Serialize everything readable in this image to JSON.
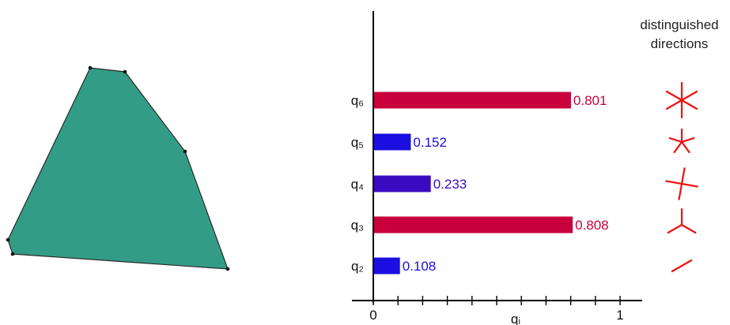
{
  "polygon": {
    "fill": "#339C86",
    "stroke": "#2a2a2a",
    "vertices_px": "layout-in-script"
  },
  "side_panel": {
    "title_line1": "distinguished",
    "title_line2": "directions"
  },
  "colors": {
    "high": "#C8003C",
    "low_a": "#1A0EE0",
    "low_b": "#3A0AC0",
    "glyph": "#EE1111"
  },
  "chart_data": {
    "type": "bar",
    "orientation": "horizontal",
    "categories": [
      "q₂",
      "q₃",
      "q₄",
      "q₅",
      "q₆"
    ],
    "values": [
      0.108,
      0.808,
      0.233,
      0.152,
      0.801
    ],
    "value_labels": [
      "0.108",
      "0.808",
      "0.233",
      "0.152",
      "0.801"
    ],
    "bar_colors": [
      "#1A0EE0",
      "#C8003C",
      "#3A0AC0",
      "#1A0EE0",
      "#C8003C"
    ],
    "xlabel": "qᵢ",
    "xlim": [
      0,
      1
    ],
    "x_ticks": [
      "0",
      "1"
    ],
    "minor_tick_step": 0.1,
    "glyph_arms": [
      1,
      3,
      4,
      5,
      6
    ]
  }
}
